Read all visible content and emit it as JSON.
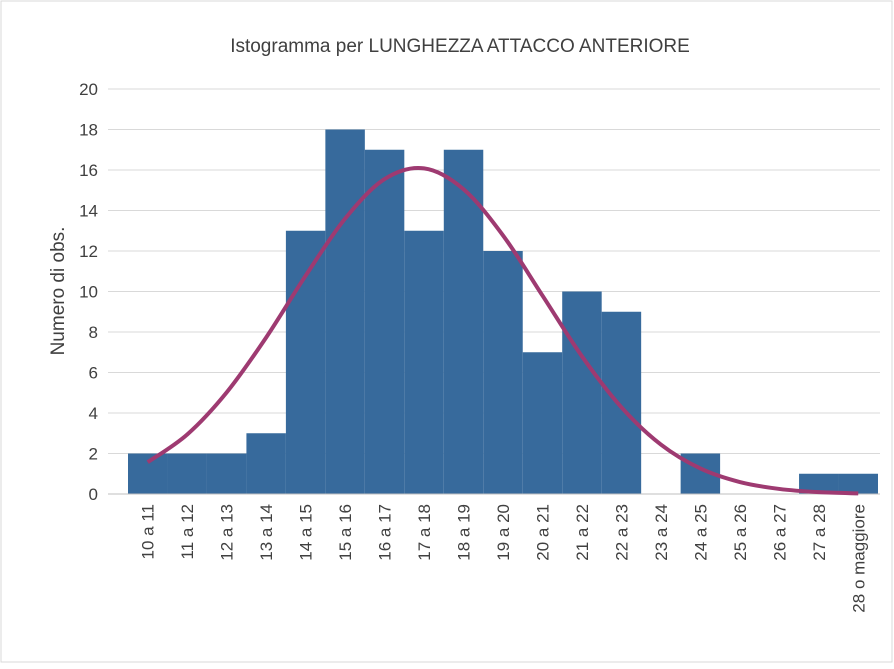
{
  "chart_data": {
    "type": "histogram",
    "title": "Istogramma per LUNGHEZZA ATTACCO ANTERIORE",
    "y_label": "Numero di obs.",
    "categories": [
      "10 a 11",
      "11 a 12",
      "12 a 13",
      "13 a 14",
      "14 a 15",
      "15 a 16",
      "16 a 17",
      "17 a 18",
      "18 a 19",
      "19 a 20",
      "20 a 21",
      "21 a 22",
      "22 a 23",
      "23 a 24",
      "24 a 25",
      "25 a 26",
      "26 a 27",
      "27 a 28",
      "28 o maggiore"
    ],
    "series": [
      {
        "type": "bar",
        "color": "#376a9c",
        "values": [
          2,
          2,
          2,
          3,
          13,
          18,
          17,
          13,
          17,
          12,
          7,
          10,
          9,
          0,
          2,
          0,
          0,
          1,
          1
        ]
      },
      {
        "type": "line",
        "color": "#9e3a71",
        "values": [
          1.57,
          2.94,
          5.02,
          7.73,
          10.78,
          13.6,
          15.55,
          16.08,
          15.05,
          12.77,
          9.8,
          6.8,
          4.28,
          2.44,
          1.26,
          0.59,
          0.25,
          0.09,
          0.03
        ]
      }
    ],
    "ylim": [
      0,
      20
    ],
    "yticks": [
      0,
      2,
      4,
      6,
      8,
      10,
      12,
      14,
      16,
      18,
      20
    ],
    "grid": true
  }
}
